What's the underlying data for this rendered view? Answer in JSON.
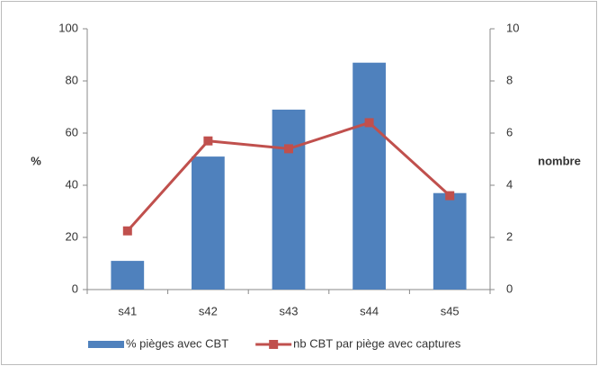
{
  "chart_data": {
    "type": "bar",
    "categories": [
      "s41",
      "s42",
      "s43",
      "s44",
      "s45"
    ],
    "series": [
      {
        "name": "% pièges avec CBT",
        "type": "bar",
        "color": "#4f81bd",
        "values": [
          11,
          51,
          69,
          87,
          37
        ]
      },
      {
        "name": "nb CBT par piège avec captures",
        "type": "line",
        "axis": "y2",
        "color": "#c0504d",
        "values": [
          2.25,
          5.7,
          5.4,
          6.4,
          3.6
        ]
      }
    ],
    "y_label": "%",
    "y2_label": "nombre",
    "ylim": [
      0,
      100
    ],
    "yticks": [
      0,
      20,
      40,
      60,
      80,
      100
    ],
    "y2lim": [
      0,
      10
    ],
    "y2ticks": [
      0,
      2,
      4,
      6,
      8,
      10
    ],
    "legend": "bottom"
  }
}
